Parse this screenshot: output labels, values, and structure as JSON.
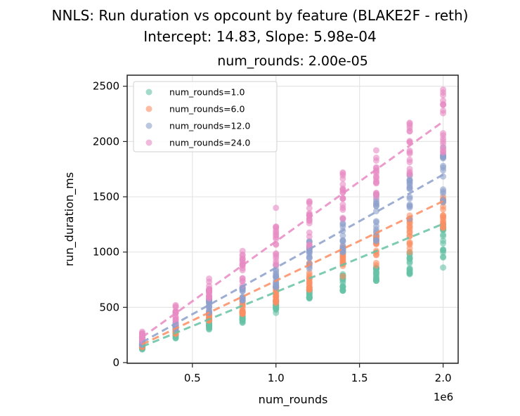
{
  "figure": {
    "suptitle_line1": "NNLS: Run duration vs opcount by feature (BLAKE2F - reth)",
    "suptitle_line2": "Intercept: 14.83, Slope: 5.98e-04",
    "axes_title": "num_rounds: 2.00e-05"
  },
  "chart_data": {
    "type": "scatter",
    "title": "num_rounds: 2.00e-05",
    "suptitle": "NNLS: Run duration vs opcount by feature (BLAKE2F - reth)\nIntercept: 14.83, Slope: 5.98e-04",
    "xlabel": "num_rounds",
    "ylabel": "run_duration_ms",
    "x_offset_label": "1e6",
    "xlim": [
      0.11,
      2.09
    ],
    "ylim": [
      0,
      2600
    ],
    "x_scale": 1000000,
    "xticks": [
      0.5,
      1.0,
      1.5,
      2.0
    ],
    "xtick_labels": [
      "0.5",
      "1.0",
      "1.5",
      "2.0"
    ],
    "yticks": [
      0,
      500,
      1000,
      1500,
      2000,
      2500
    ],
    "ytick_labels": [
      "0",
      "500",
      "1000",
      "1500",
      "2000",
      "2500"
    ],
    "grid": true,
    "legend_position": "upper left",
    "x": [
      0.2,
      0.4,
      0.6,
      0.8,
      1.0,
      1.2,
      1.4,
      1.6,
      1.8,
      2.0
    ],
    "series": [
      {
        "name": "num_rounds=1.0",
        "color": "#66c2a5",
        "ranges": [
          [
            120,
            160
          ],
          [
            220,
            280
          ],
          [
            300,
            400
          ],
          [
            360,
            460
          ],
          [
            450,
            560
          ],
          [
            580,
            660
          ],
          [
            650,
            800
          ],
          [
            740,
            860
          ],
          [
            800,
            1000
          ],
          [
            860,
            1250
          ]
        ],
        "fit_line": {
          "x": [
            0.2,
            2.0
          ],
          "y": [
            145,
            1255
          ]
        }
      },
      {
        "name": "num_rounds=6.0",
        "color": "#fc8d62",
        "ranges": [
          [
            140,
            170
          ],
          [
            260,
            320
          ],
          [
            380,
            450
          ],
          [
            440,
            560
          ],
          [
            540,
            680
          ],
          [
            660,
            900
          ],
          [
            780,
            1050
          ],
          [
            880,
            1150
          ],
          [
            1000,
            1330
          ],
          [
            1220,
            1500
          ]
        ],
        "fit_line": {
          "x": [
            0.2,
            2.0
          ],
          "y": [
            165,
            1460
          ]
        }
      },
      {
        "name": "num_rounds=12.0",
        "color": "#8da0cb",
        "ranges": [
          [
            160,
            200
          ],
          [
            300,
            360
          ],
          [
            450,
            580
          ],
          [
            560,
            680
          ],
          [
            680,
            880
          ],
          [
            850,
            1100
          ],
          [
            1000,
            1300
          ],
          [
            1100,
            1520
          ],
          [
            1300,
            1700
          ],
          [
            1450,
            1950
          ]
        ],
        "fit_line": {
          "x": [
            0.2,
            2.0
          ],
          "y": [
            185,
            1700
          ]
        }
      },
      {
        "name": "num_rounds=24.0",
        "color": "#e78ac3",
        "ranges": [
          [
            190,
            280
          ],
          [
            360,
            520
          ],
          [
            580,
            760
          ],
          [
            700,
            1010
          ],
          [
            880,
            1230
          ],
          [
            1050,
            1460
          ],
          [
            1300,
            1720
          ],
          [
            1500,
            1920
          ],
          [
            1700,
            2170
          ],
          [
            1900,
            2470
          ]
        ],
        "outliers": [
          {
            "x": 1.0,
            "y": 1400
          }
        ],
        "fit_line": {
          "x": [
            0.2,
            2.0
          ],
          "y": [
            230,
            2180
          ]
        }
      }
    ]
  },
  "legend": {
    "items": [
      {
        "label": "num_rounds=1.0",
        "color": "#66c2a5"
      },
      {
        "label": "num_rounds=6.0",
        "color": "#fc8d62"
      },
      {
        "label": "num_rounds=12.0",
        "color": "#8da0cb"
      },
      {
        "label": "num_rounds=24.0",
        "color": "#e78ac3"
      }
    ]
  }
}
